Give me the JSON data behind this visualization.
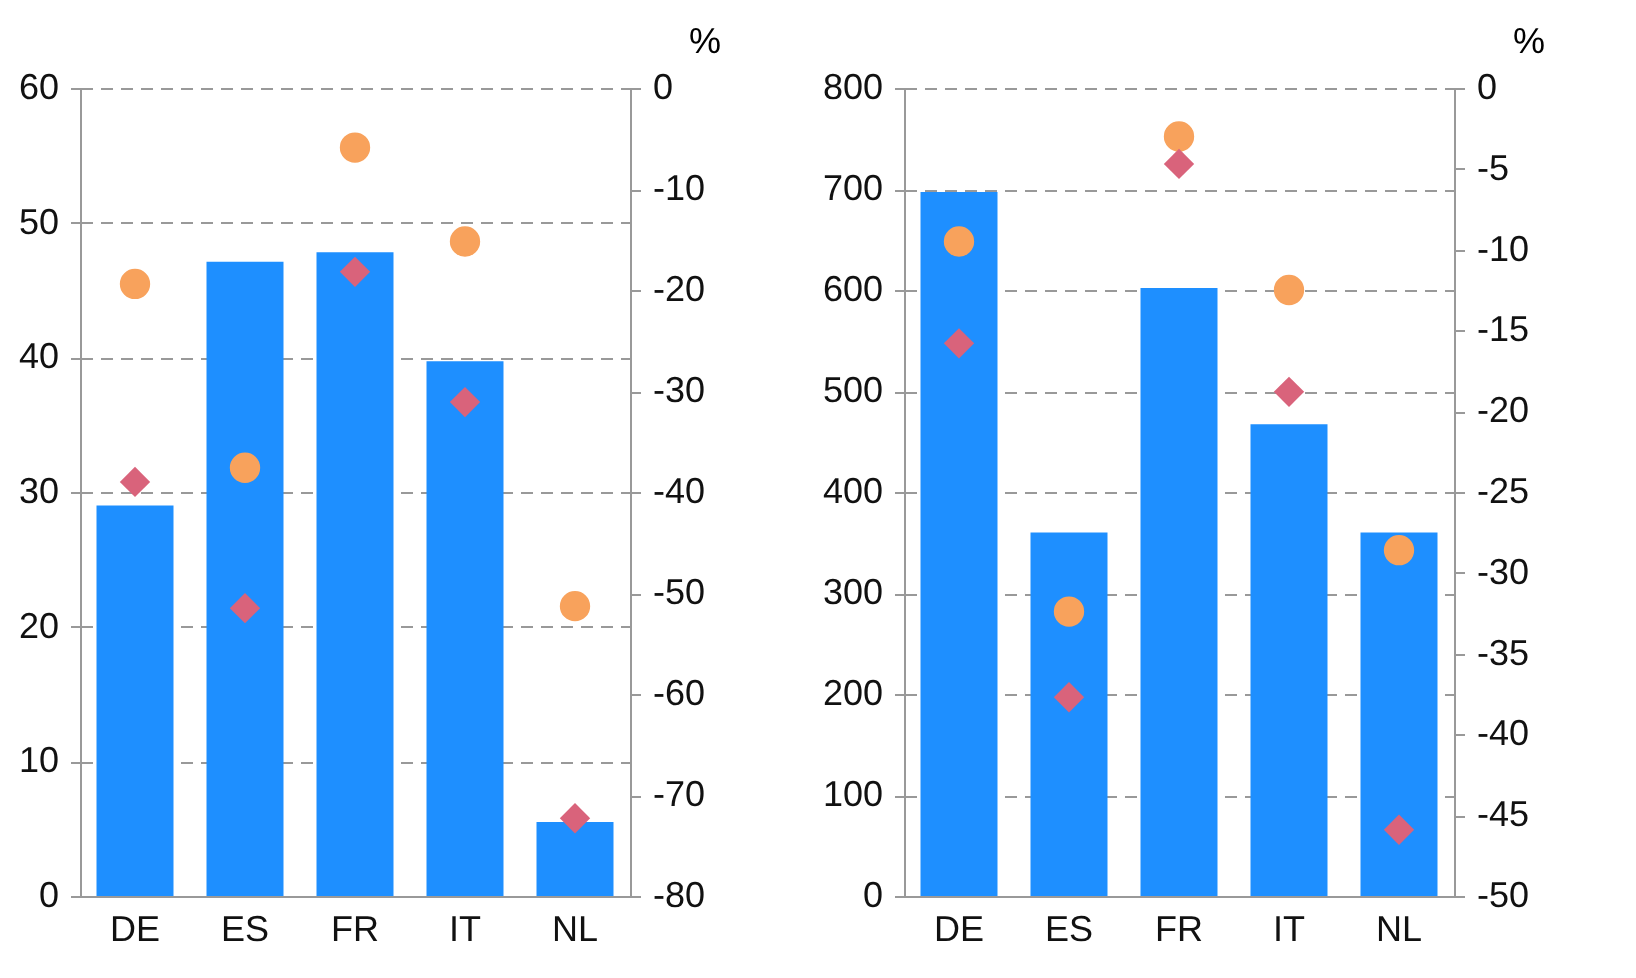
{
  "chart_data": [
    {
      "type": "bar",
      "categories": [
        "DE",
        "ES",
        "FR",
        "IT",
        "NL"
      ],
      "y2label": "%",
      "ylim": [
        0,
        60
      ],
      "yticks": [
        0,
        10,
        20,
        30,
        40,
        50,
        60
      ],
      "y2lim": [
        -80,
        0
      ],
      "y2ticks": [
        -80,
        -70,
        -60,
        -50,
        -40,
        -30,
        -20,
        -10,
        0
      ],
      "grid": "y",
      "series": [
        {
          "type": "bar",
          "color": "#1e8fff",
          "values": [
            29,
            47.1,
            47.8,
            39.7,
            5.5
          ]
        },
        {
          "type": "scatter",
          "marker": "circle",
          "axis": "y2",
          "color": "#f8a25c",
          "values": [
            -19.4,
            -37.6,
            -5.9,
            -15.2,
            -51.3
          ]
        },
        {
          "type": "scatter",
          "marker": "diamond",
          "axis": "y2",
          "color": "#d9637b",
          "values": [
            -39,
            -51.5,
            -18.2,
            -31.1,
            -72.3
          ]
        }
      ]
    },
    {
      "type": "bar",
      "categories": [
        "DE",
        "ES",
        "FR",
        "IT",
        "NL"
      ],
      "y2label": "%",
      "ylim": [
        0,
        800
      ],
      "yticks": [
        0,
        100,
        200,
        300,
        400,
        500,
        600,
        700,
        800
      ],
      "y2lim": [
        -50,
        0
      ],
      "y2ticks": [
        -50,
        -45,
        -40,
        -35,
        -30,
        -25,
        -20,
        -15,
        -10,
        -5,
        0
      ],
      "grid": "y",
      "series": [
        {
          "type": "bar",
          "color": "#1e8fff",
          "values": [
            697,
            360,
            602,
            467,
            360
          ]
        },
        {
          "type": "scatter",
          "marker": "circle",
          "axis": "y2",
          "color": "#f8a25c",
          "values": [
            -9.5,
            -32.4,
            -3,
            -12.5,
            -28.6
          ]
        },
        {
          "type": "scatter",
          "marker": "diamond",
          "axis": "y2",
          "color": "#d9637b",
          "values": [
            -15.8,
            -37.7,
            -4.7,
            -18.8,
            -45.9
          ]
        }
      ]
    }
  ]
}
